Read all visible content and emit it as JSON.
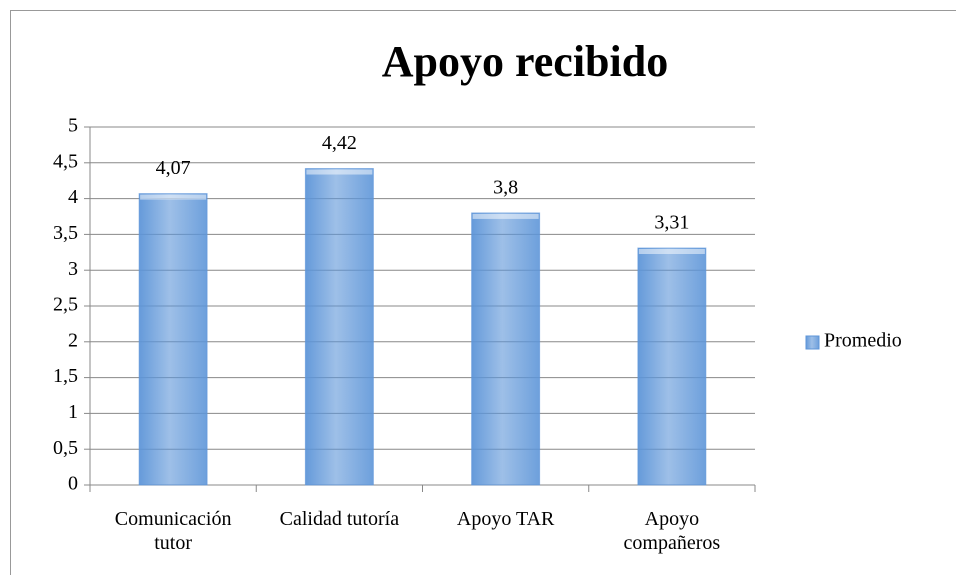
{
  "chart_data": {
    "type": "bar",
    "title": "Apoyo recibido",
    "categories": [
      "Comunicación tutor",
      "Calidad tutoría",
      "Apoyo TAR",
      "Apoyo compañeros"
    ],
    "series": [
      {
        "name": "Promedio",
        "color": "#5d95d8",
        "values": [
          4.07,
          4.42,
          3.8,
          3.31
        ],
        "value_labels": [
          "4,07",
          "4,42",
          "3,8",
          "3,31"
        ]
      }
    ],
    "ylim": [
      0,
      5
    ],
    "yticks": [
      0,
      {
        "value": 0.5,
        "label": "0,5"
      },
      1,
      {
        "value": 1.5,
        "label": "1,5"
      },
      2,
      {
        "value": 2.5,
        "label": "2,5"
      },
      3,
      {
        "value": 3.5,
        "label": "3,5"
      },
      4,
      {
        "value": 4.5,
        "label": "4,5"
      },
      5
    ],
    "grid": true,
    "legend": "right"
  }
}
